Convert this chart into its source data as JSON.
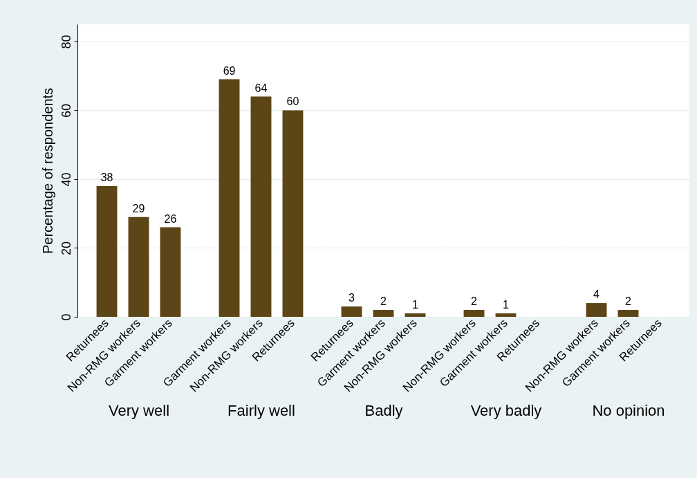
{
  "chart_data": [
    {
      "type": "bar",
      "xlabel": "Very well",
      "ylabel": "Percentage of respondents",
      "categories": [
        "Returnees",
        "Non-RMG workers",
        "Garment workers"
      ],
      "values": [
        38,
        29,
        26
      ],
      "value_labels": [
        "38",
        "29",
        "26"
      ],
      "color": "#5c4516",
      "ylim": [
        0,
        85
      ],
      "yticks": [
        0,
        20,
        40,
        60,
        80
      ],
      "grid": "y"
    },
    {
      "type": "bar",
      "xlabel": "Fairly well",
      "categories": [
        "Garment workers",
        "Non-RMG workers",
        "Returnees"
      ],
      "values": [
        69,
        64,
        60
      ],
      "value_labels": [
        "69",
        "64",
        "60"
      ],
      "color": "#5c4516",
      "ylim": [
        0,
        85
      ],
      "yticks": [
        0,
        20,
        40,
        60,
        80
      ],
      "grid": "y",
      "tick_labels": "x"
    },
    {
      "type": "bar",
      "xlabel": "Badly",
      "categories": [
        "Returnees",
        "Garment workers",
        "Non-RMG workers"
      ],
      "values": [
        3,
        2,
        1
      ],
      "value_labels": [
        "3",
        "2",
        "1"
      ],
      "color": "#5c4516",
      "ylim": [
        0,
        85
      ],
      "yticks": [
        0,
        20,
        40,
        60,
        80
      ],
      "grid": "y",
      "tick_labels": "x"
    },
    {
      "type": "bar",
      "xlabel": "Very badly",
      "categories": [
        "Non-RMG workers",
        "Garment workers",
        "Returnees"
      ],
      "values": [
        2,
        1,
        0
      ],
      "value_labels": [
        "2",
        "1",
        null
      ],
      "color": "#5c4516",
      "ylim": [
        0,
        85
      ],
      "yticks": [
        0,
        20,
        40,
        60,
        80
      ],
      "grid": "y",
      "tick_labels": "x"
    },
    {
      "type": "bar",
      "xlabel": "No opinion",
      "categories": [
        "Non-RMG workers",
        "Garment workers",
        "Returnees"
      ],
      "values": [
        4,
        2,
        0
      ],
      "value_labels": [
        "4",
        "2",
        null
      ],
      "color": "#5c4516",
      "ylim": [
        0,
        85
      ],
      "yticks": [
        0,
        20,
        40,
        60,
        80
      ],
      "grid": "y",
      "tick_labels": "x"
    }
  ]
}
